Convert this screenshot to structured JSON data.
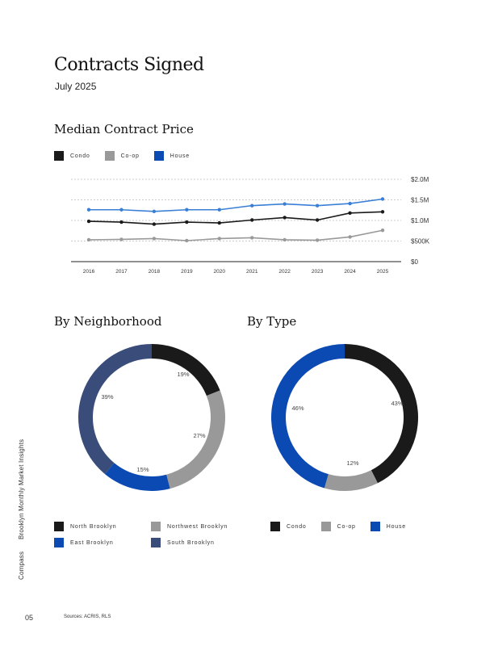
{
  "page": {
    "title": "Contracts Signed",
    "subtitle": "July 2025",
    "side_label": "Brooklyn Monthly Market Insights",
    "brand": "Compass",
    "page_number": "05",
    "sources": "Sources: ACRIS, RLS"
  },
  "colors": {
    "condo": "#1a1a1a",
    "coop": "#999999",
    "house": "#0b49b3",
    "house_line": "#3a7fd6",
    "north": "#1a1a1a",
    "northwest": "#999999",
    "east": "#0b49b3",
    "south": "#3a4d7a"
  },
  "chart_data": [
    {
      "type": "line",
      "title": "Median Contract Price",
      "x": [
        "2016",
        "2017",
        "2018",
        "2019",
        "2020",
        "2021",
        "2022",
        "2023",
        "2024",
        "2025"
      ],
      "series": [
        {
          "name": "Condo",
          "values": [
            0.98,
            0.96,
            0.91,
            0.96,
            0.94,
            1.01,
            1.07,
            1.01,
            1.18,
            1.21
          ]
        },
        {
          "name": "Co-op",
          "values": [
            0.53,
            0.54,
            0.56,
            0.51,
            0.56,
            0.58,
            0.53,
            0.52,
            0.6,
            0.76
          ]
        },
        {
          "name": "House",
          "values": [
            1.26,
            1.26,
            1.22,
            1.26,
            1.26,
            1.36,
            1.4,
            1.36,
            1.41,
            1.52
          ]
        }
      ],
      "ylim": [
        0,
        2.0
      ],
      "y_ticks": [
        {
          "value": 0,
          "label": "$0"
        },
        {
          "value": 0.5,
          "label": "$500K"
        },
        {
          "value": 1.0,
          "label": "$1.0M"
        },
        {
          "value": 1.5,
          "label": "$1.5M"
        },
        {
          "value": 2.0,
          "label": "$2.0M"
        }
      ],
      "legend": [
        "Condo",
        "Co-op",
        "House"
      ],
      "legend_position": "top-left"
    },
    {
      "type": "pie",
      "title": "By Neighborhood",
      "slices": [
        {
          "name": "North Brooklyn",
          "value": 19,
          "label": "19%"
        },
        {
          "name": "Northwest Brooklyn",
          "value": 27,
          "label": "27%"
        },
        {
          "name": "East Brooklyn",
          "value": 15,
          "label": "15%"
        },
        {
          "name": "South Brooklyn",
          "value": 39,
          "label": "39%"
        }
      ],
      "legend_position": "bottom"
    },
    {
      "type": "pie",
      "title": "By Type",
      "slices": [
        {
          "name": "Condo",
          "value": 43,
          "label": "43%"
        },
        {
          "name": "Co-op",
          "value": 12,
          "label": "12%"
        },
        {
          "name": "House",
          "value": 46,
          "label": "46%"
        }
      ],
      "legend_position": "bottom"
    }
  ]
}
